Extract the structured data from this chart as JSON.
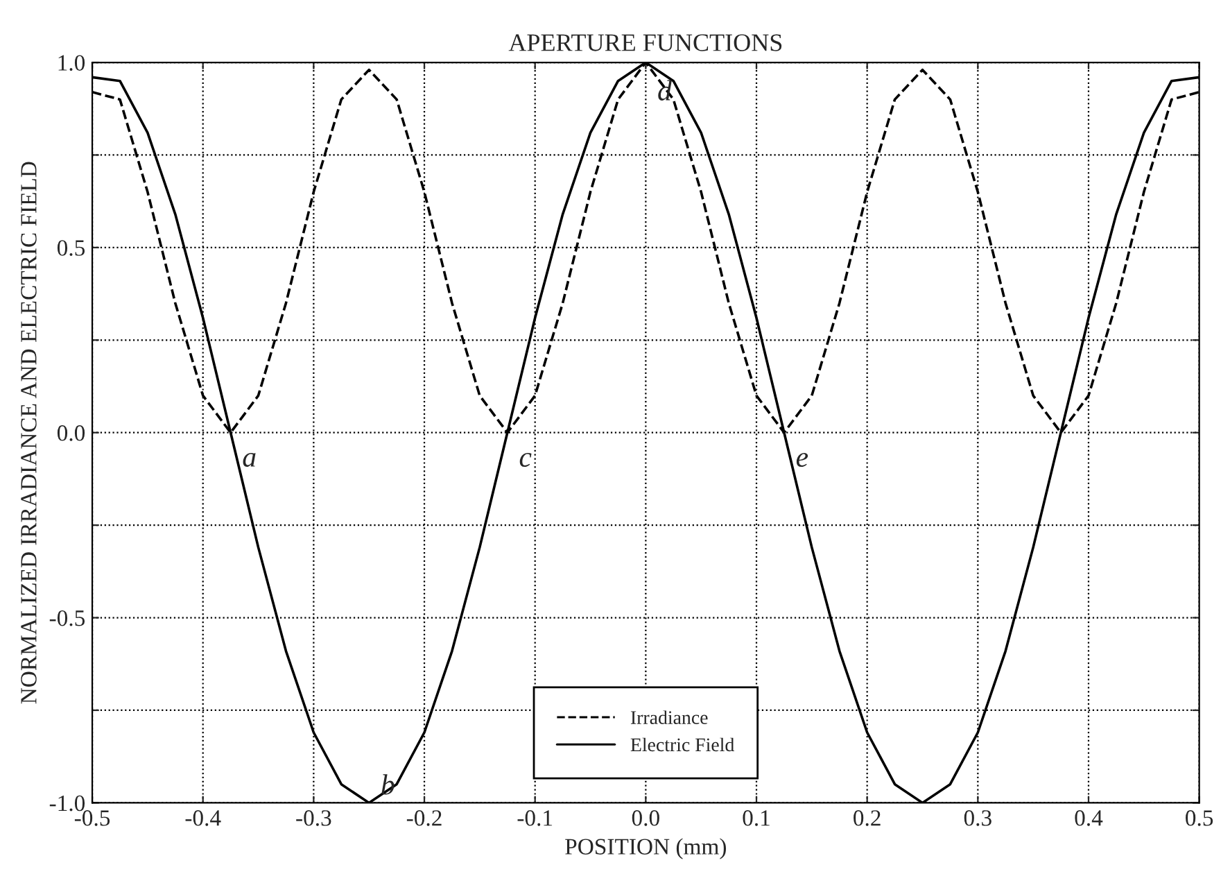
{
  "chart_data": {
    "type": "line",
    "title": "APERTURE FUNCTIONS",
    "xlabel": "POSITION (mm)",
    "ylabel": "NORMALIZED IRRADIANCE AND ELECTRIC FIELD",
    "x": [
      -0.5,
      -0.475,
      -0.45,
      -0.425,
      -0.4,
      -0.375,
      -0.35,
      -0.325,
      -0.3,
      -0.275,
      -0.25,
      -0.225,
      -0.2,
      -0.175,
      -0.15,
      -0.125,
      -0.1,
      -0.075,
      -0.05,
      -0.025,
      0,
      0.025,
      0.05,
      0.075,
      0.1,
      0.125,
      0.15,
      0.175,
      0.2,
      0.225,
      0.25,
      0.275,
      0.3,
      0.325,
      0.35,
      0.375,
      0.4,
      0.425,
      0.45,
      0.475,
      0.5
    ],
    "series": [
      {
        "name": "Irradiance",
        "color": "#000000",
        "line_style": "dashed",
        "values": [
          0.92,
          0.9,
          0.65,
          0.35,
          0.1,
          0,
          0.1,
          0.35,
          0.65,
          0.9,
          0.98,
          0.9,
          0.65,
          0.35,
          0.1,
          0,
          0.1,
          0.35,
          0.65,
          0.9,
          1.0,
          0.9,
          0.65,
          0.35,
          0.1,
          0,
          0.1,
          0.35,
          0.65,
          0.9,
          0.98,
          0.9,
          0.65,
          0.35,
          0.1,
          0,
          0.1,
          0.35,
          0.65,
          0.9,
          0.92
        ]
      },
      {
        "name": "Electric Field",
        "color": "#000000",
        "line_style": "solid",
        "values": [
          0.96,
          0.95,
          0.81,
          0.59,
          0.31,
          0,
          -0.31,
          -0.59,
          -0.81,
          -0.95,
          -1,
          -0.95,
          -0.81,
          -0.59,
          -0.31,
          0,
          0.31,
          0.59,
          0.81,
          0.95,
          1,
          0.95,
          0.81,
          0.59,
          0.31,
          0,
          -0.31,
          -0.59,
          -0.81,
          -0.95,
          -1,
          -0.95,
          -0.81,
          -0.59,
          -0.31,
          0,
          0.31,
          0.59,
          0.81,
          0.95,
          0.96
        ]
      }
    ],
    "annotations": [
      {
        "text": "a",
        "x": -0.375,
        "y": 0
      },
      {
        "text": "b",
        "x": -0.25,
        "y": -1
      },
      {
        "text": "c",
        "x": -0.125,
        "y": 0
      },
      {
        "text": "d",
        "x": 0,
        "y": 1
      },
      {
        "text": "e",
        "x": 0.125,
        "y": 0
      }
    ],
    "xlim": [
      -0.5,
      0.5
    ],
    "ylim": [
      -1.0,
      1.0
    ],
    "xticks": [
      {
        "value": -0.5,
        "label": "-0.5"
      },
      {
        "value": -0.4,
        "label": "-0.4"
      },
      {
        "value": -0.3,
        "label": "-0.3"
      },
      {
        "value": -0.2,
        "label": "-0.2"
      },
      {
        "value": -0.1,
        "label": "-0.1"
      },
      {
        "value": 0,
        "label": "0.0"
      },
      {
        "value": 0.1,
        "label": "0.1"
      },
      {
        "value": 0.2,
        "label": "0.2"
      },
      {
        "value": 0.3,
        "label": "0.3"
      },
      {
        "value": 0.4,
        "label": "0.4"
      },
      {
        "value": 0.5,
        "label": "0.5"
      }
    ],
    "yticks": [
      {
        "value": -1.0,
        "label": "-1.0"
      },
      {
        "value": -0.75,
        "label": null
      },
      {
        "value": -0.5,
        "label": "-0.5"
      },
      {
        "value": -0.25,
        "label": null
      },
      {
        "value": 0,
        "label": "0.0"
      },
      {
        "value": 0.25,
        "label": null
      },
      {
        "value": 0.5,
        "label": "0.5"
      },
      {
        "value": 0.75,
        "label": null
      },
      {
        "value": 1.0,
        "label": "1.0"
      }
    ],
    "grid": true,
    "legend": "bottom"
  }
}
